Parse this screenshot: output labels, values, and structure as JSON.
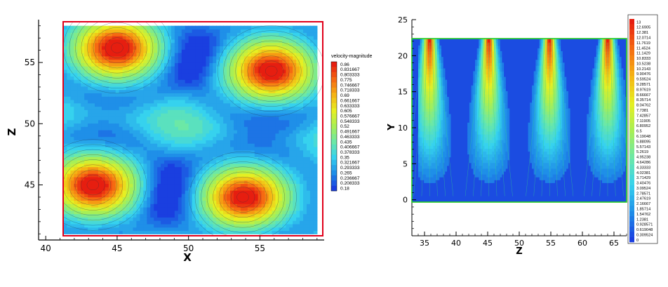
{
  "chart_data": [
    {
      "type": "heatmap",
      "title": "",
      "xlabel": "X",
      "ylabel": "Z",
      "xlim": [
        39.5,
        59.5
      ],
      "ylim": [
        40.5,
        58.5
      ],
      "xticks": [
        "40",
        "45",
        "50",
        "55"
      ],
      "yticks": [
        "45",
        "50",
        "55"
      ],
      "xtick_values": [
        40,
        45,
        50,
        55
      ],
      "ytick_values": [
        45,
        50,
        55
      ],
      "domain": {
        "x": [
          41,
          59
        ],
        "z": [
          41,
          58
        ]
      },
      "legend_title": "velocity-magnitude",
      "legend_placement": "right",
      "colormap": [
        "#1a3fe0",
        "#1f8fe8",
        "#36d2ee",
        "#6ce8a6",
        "#a8ef55",
        "#e6ef22",
        "#f5b414",
        "#f56a12",
        "#e61e10"
      ],
      "legend_values": [
        "0.86",
        "0.831667",
        "0.803333",
        "0.775",
        "0.746667",
        "0.718333",
        "0.69",
        "0.661667",
        "0.633333",
        "0.605",
        "0.576667",
        "0.548333",
        "0.52",
        "0.491667",
        "0.463333",
        "0.435",
        "0.406667",
        "0.378333",
        "0.35",
        "0.321667",
        "0.293333",
        "0.265",
        "0.236667",
        "0.208333",
        "0.18"
      ],
      "vmin": 0.18,
      "vmax": 0.86,
      "peaks": [
        {
          "x": 45.0,
          "z": 56.2,
          "value": 0.86
        },
        {
          "x": 55.8,
          "z": 54.3,
          "value": 0.86
        },
        {
          "x": 43.3,
          "z": 45.0,
          "value": 0.86
        },
        {
          "x": 53.8,
          "z": 44.0,
          "value": 0.86
        }
      ],
      "border_color": "#e0001a"
    },
    {
      "type": "heatmap",
      "title": "",
      "xlabel": "Z",
      "ylabel": "Y",
      "xlim": [
        33,
        67
      ],
      "ylim": [
        -5,
        25
      ],
      "xticks": [
        "35",
        "40",
        "45",
        "50",
        "55",
        "60",
        "65"
      ],
      "yticks": [
        "0",
        "5",
        "10",
        "15",
        "20",
        "25"
      ],
      "xtick_values": [
        35,
        40,
        45,
        50,
        55,
        60,
        65
      ],
      "ytick_values": [
        0,
        5,
        10,
        15,
        20,
        25
      ],
      "domain": {
        "z": [
          34,
          67
        ],
        "y": [
          0,
          23
        ]
      },
      "legend_placement": "right",
      "colormap": [
        "#1a3fe0",
        "#1f8fe8",
        "#36d2ee",
        "#6ce8a6",
        "#a8ef55",
        "#e6ef22",
        "#f5b414",
        "#f56a12",
        "#e61e10"
      ],
      "legend_values": [
        "13",
        "12.6905",
        "12.381",
        "12.0714",
        "11.7619",
        "11.4524",
        "11.1429",
        "10.8333",
        "10.5238",
        "10.2143",
        "9.90476",
        "9.59524",
        "9.28571",
        "8.97619",
        "8.66667",
        "8.35714",
        "8.04762",
        "7.7381",
        "7.42857",
        "7.11905",
        "6.80952",
        "6.5",
        "6.19048",
        "5.88095",
        "5.57143",
        "5.2619",
        "4.95238",
        "4.64286",
        "4.33333",
        "4.02381",
        "3.71429",
        "3.40476",
        "3.09524",
        "2.78571",
        "2.47619",
        "2.16667",
        "1.85714",
        "1.54762",
        "1.2381",
        "0.928571",
        "0.619048",
        "0.309524",
        "0"
      ],
      "vmin": 0,
      "vmax": 13,
      "jets": [
        {
          "z": 35.8,
          "peak": 13
        },
        {
          "z": 45.2,
          "peak": 13
        },
        {
          "z": 54.8,
          "peak": 13
        },
        {
          "z": 64.0,
          "peak": 13
        }
      ],
      "border_color": "#22cc22"
    }
  ]
}
